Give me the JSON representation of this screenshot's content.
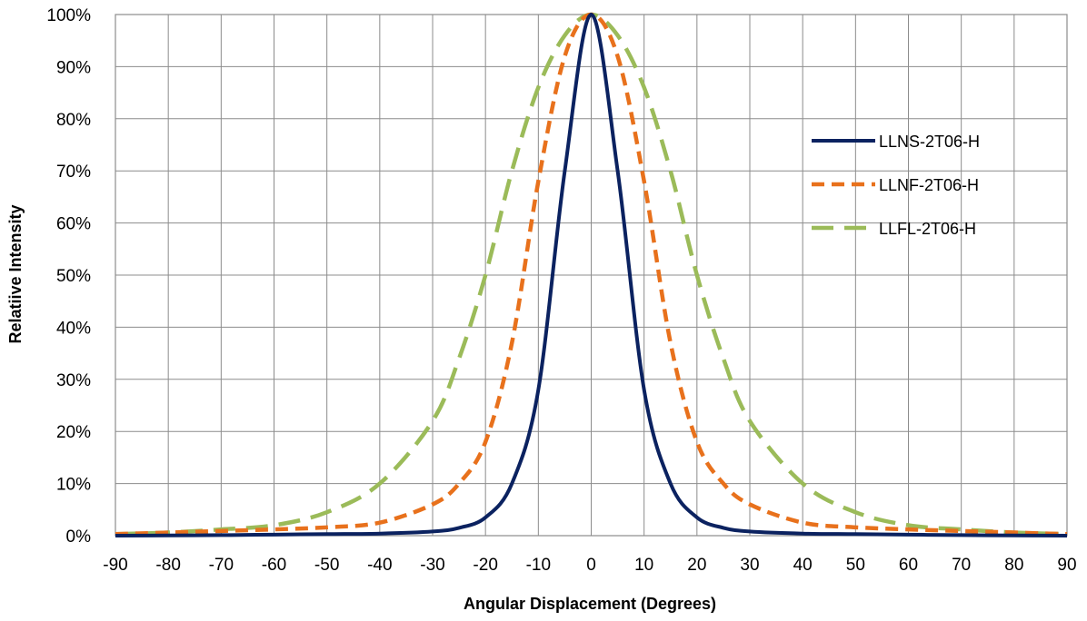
{
  "chart_data": {
    "type": "line",
    "xlabel": "Angular Displacement (Degrees)",
    "ylabel": "Relatiive Intensity",
    "xlim": [
      -90,
      90
    ],
    "ylim": [
      0,
      100
    ],
    "x_ticks": [
      -90,
      -80,
      -70,
      -60,
      -50,
      -40,
      -30,
      -20,
      -10,
      0,
      10,
      20,
      30,
      40,
      50,
      60,
      70,
      80,
      90
    ],
    "x_tick_labels": [
      "-90",
      "-80",
      "-70",
      "-60",
      "-50",
      "-40",
      "-30",
      "-20",
      "-10",
      "0",
      "10",
      "20",
      "30",
      "40",
      "50",
      "60",
      "70",
      "80",
      "90"
    ],
    "y_ticks": [
      0,
      10,
      20,
      30,
      40,
      50,
      60,
      70,
      80,
      90,
      100
    ],
    "y_tick_labels": [
      "0%",
      "10%",
      "20%",
      "30%",
      "40%",
      "50%",
      "60%",
      "70%",
      "80%",
      "90%",
      "100%"
    ],
    "grid": true,
    "legend_position": "right",
    "x": [
      -90,
      -80,
      -70,
      -60,
      -50,
      -40,
      -30,
      -25,
      -20,
      -15,
      -10,
      -5,
      0,
      5,
      10,
      15,
      20,
      25,
      30,
      40,
      50,
      60,
      70,
      80,
      90
    ],
    "series": [
      {
        "name": "LLNS-2T06-H",
        "color": "#0b2260",
        "dash": "solid",
        "values": [
          0.0,
          0.05,
          0.1,
          0.2,
          0.3,
          0.4,
          0.8,
          1.5,
          3.5,
          10,
          28,
          70,
          100,
          70,
          28,
          10,
          3.5,
          1.5,
          0.8,
          0.4,
          0.3,
          0.2,
          0.1,
          0.05,
          0.0
        ]
      },
      {
        "name": "LLNF-2T06-H",
        "color": "#e8711c",
        "dash": "short-dash",
        "values": [
          0.3,
          0.6,
          0.9,
          1.2,
          1.6,
          2.5,
          6,
          10,
          18,
          37,
          68,
          92,
          100,
          92,
          68,
          37,
          18,
          10,
          6,
          2.5,
          1.6,
          1.2,
          0.9,
          0.6,
          0.3
        ]
      },
      {
        "name": "LLFL-2T06-H",
        "color": "#9bbb59",
        "dash": "long-dash",
        "values": [
          0.3,
          0.6,
          1.2,
          2,
          4.5,
          10,
          22,
          34,
          50,
          70,
          86,
          96,
          100,
          96,
          86,
          70,
          50,
          34,
          22,
          10,
          4.5,
          2,
          1.2,
          0.6,
          0.3
        ]
      }
    ]
  }
}
